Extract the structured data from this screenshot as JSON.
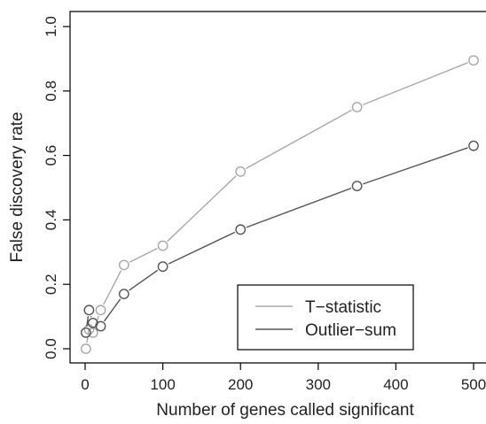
{
  "chart_data": {
    "type": "line",
    "title": "",
    "xlabel": "Number of genes called significant",
    "ylabel": "False discovery rate",
    "xlim": [
      -15,
      515
    ],
    "ylim": [
      -0.02,
      1.02
    ],
    "xticks": [
      0,
      100,
      200,
      300,
      400,
      500
    ],
    "yticks": [
      0.0,
      0.2,
      0.4,
      0.6,
      0.8,
      1.0
    ],
    "xtick_labels": [
      "0",
      "100",
      "200",
      "300",
      "400",
      "500"
    ],
    "ytick_labels": [
      "0.0",
      "0.2",
      "0.4",
      "0.6",
      "0.8",
      "1.0"
    ],
    "grid": false,
    "legend_position": "bottom-right",
    "series": [
      {
        "name": "T−statistic",
        "color": "#a8a8a8",
        "x": [
          1,
          5,
          10,
          20,
          50,
          100,
          200,
          350,
          500
        ],
        "y": [
          0.0,
          0.06,
          0.05,
          0.12,
          0.26,
          0.32,
          0.55,
          0.75,
          0.895
        ]
      },
      {
        "name": "Outlier−sum",
        "color": "#555555",
        "x": [
          1,
          5,
          10,
          20,
          50,
          100,
          200,
          350,
          500
        ],
        "y": [
          0.05,
          0.12,
          0.08,
          0.07,
          0.17,
          0.255,
          0.37,
          0.505,
          0.63
        ]
      }
    ]
  }
}
